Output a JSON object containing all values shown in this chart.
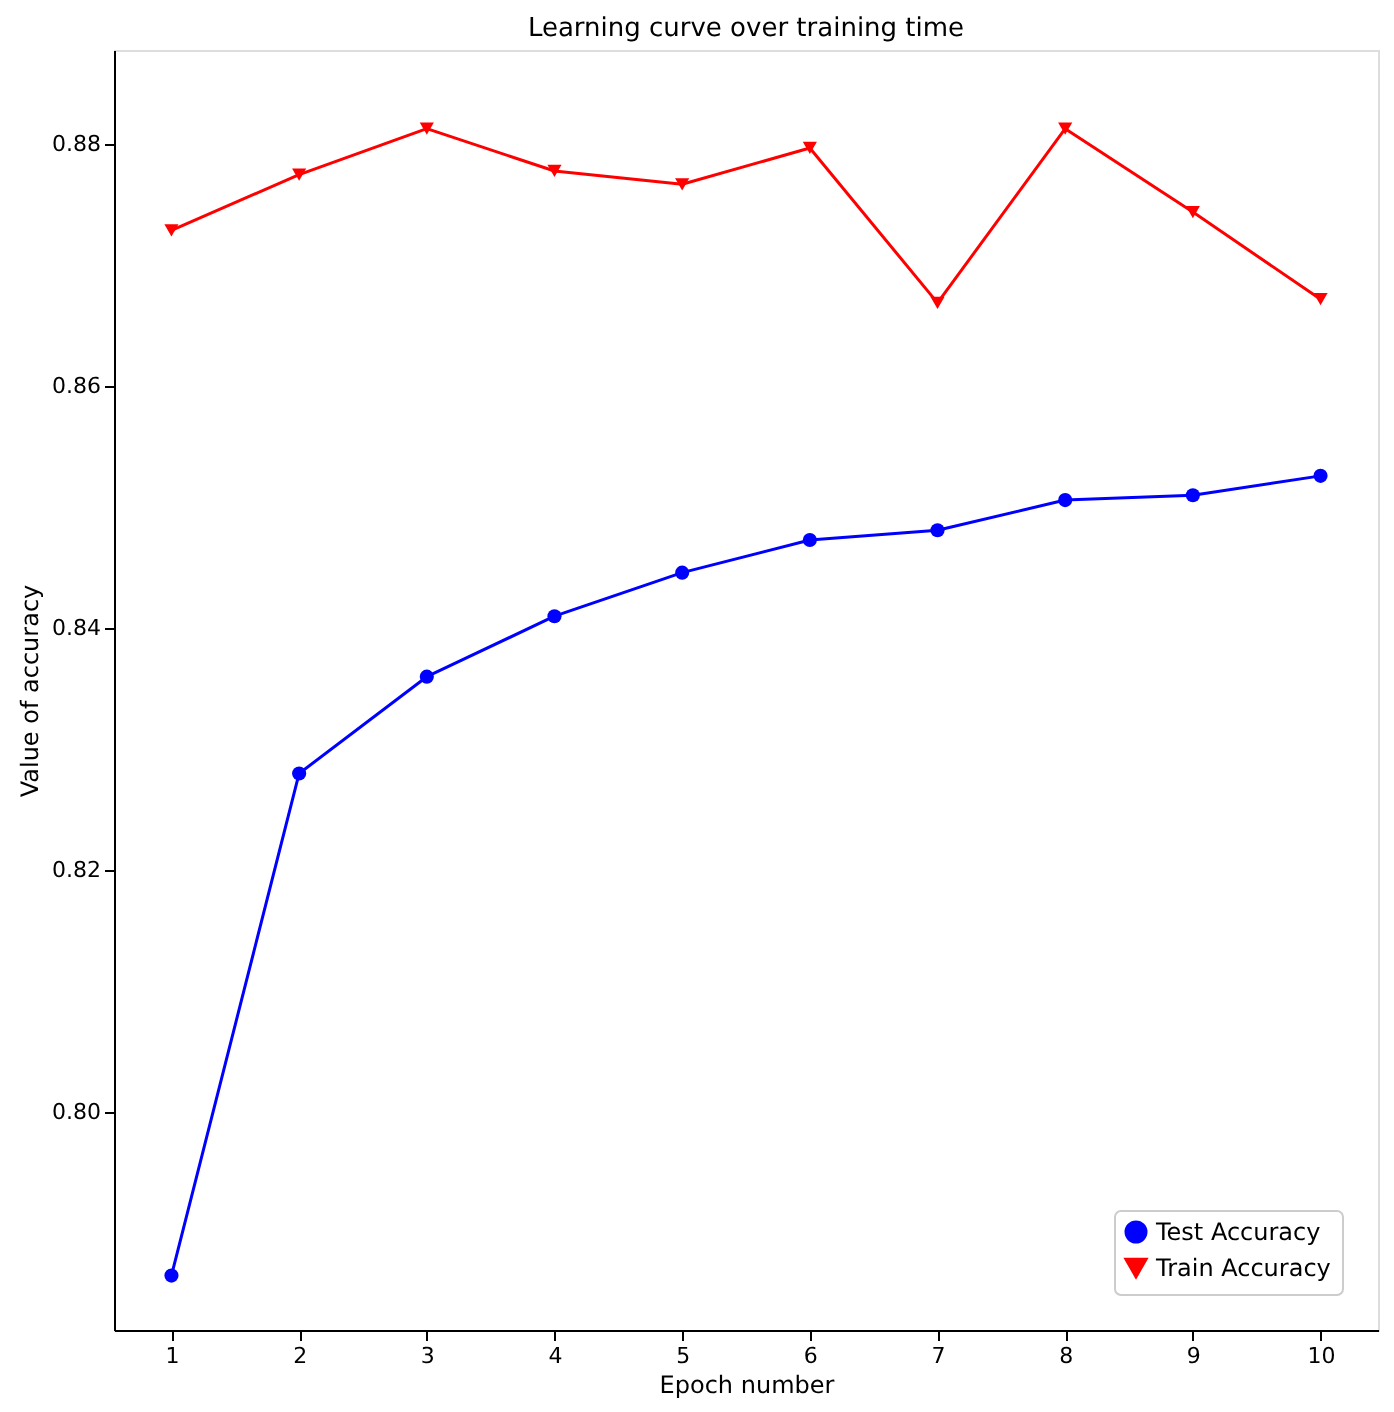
{
  "chart_data": {
    "type": "line",
    "title": "Learning curve over training time",
    "xlabel": "Epoch number",
    "ylabel": "Value of accuracy",
    "x": [
      1,
      2,
      3,
      4,
      5,
      6,
      7,
      8,
      9,
      10
    ],
    "series": [
      {
        "name": "Test Accuracy",
        "color": "#0000ff",
        "marker": "circle",
        "values": [
          0.7865,
          0.828,
          0.836,
          0.841,
          0.8446,
          0.8473,
          0.8481,
          0.8506,
          0.851,
          0.8526
        ]
      },
      {
        "name": "Train Accuracy",
        "color": "#ff0000",
        "marker": "triangle",
        "values": [
          0.8729,
          0.8775,
          0.8813,
          0.8778,
          0.8767,
          0.8797,
          0.8669,
          0.8813,
          0.8744,
          0.8672
        ]
      }
    ],
    "xlim": [
      0.55,
      10.45
    ],
    "ylim": [
      0.782,
      0.8878
    ],
    "xticks": [
      1,
      2,
      3,
      4,
      5,
      6,
      7,
      8,
      9,
      10
    ],
    "yticks": [
      {
        "value": 0.8,
        "label": "0.80"
      },
      0.82,
      0.84,
      0.86,
      0.88
    ],
    "grid": false,
    "legend": "bottom right"
  }
}
